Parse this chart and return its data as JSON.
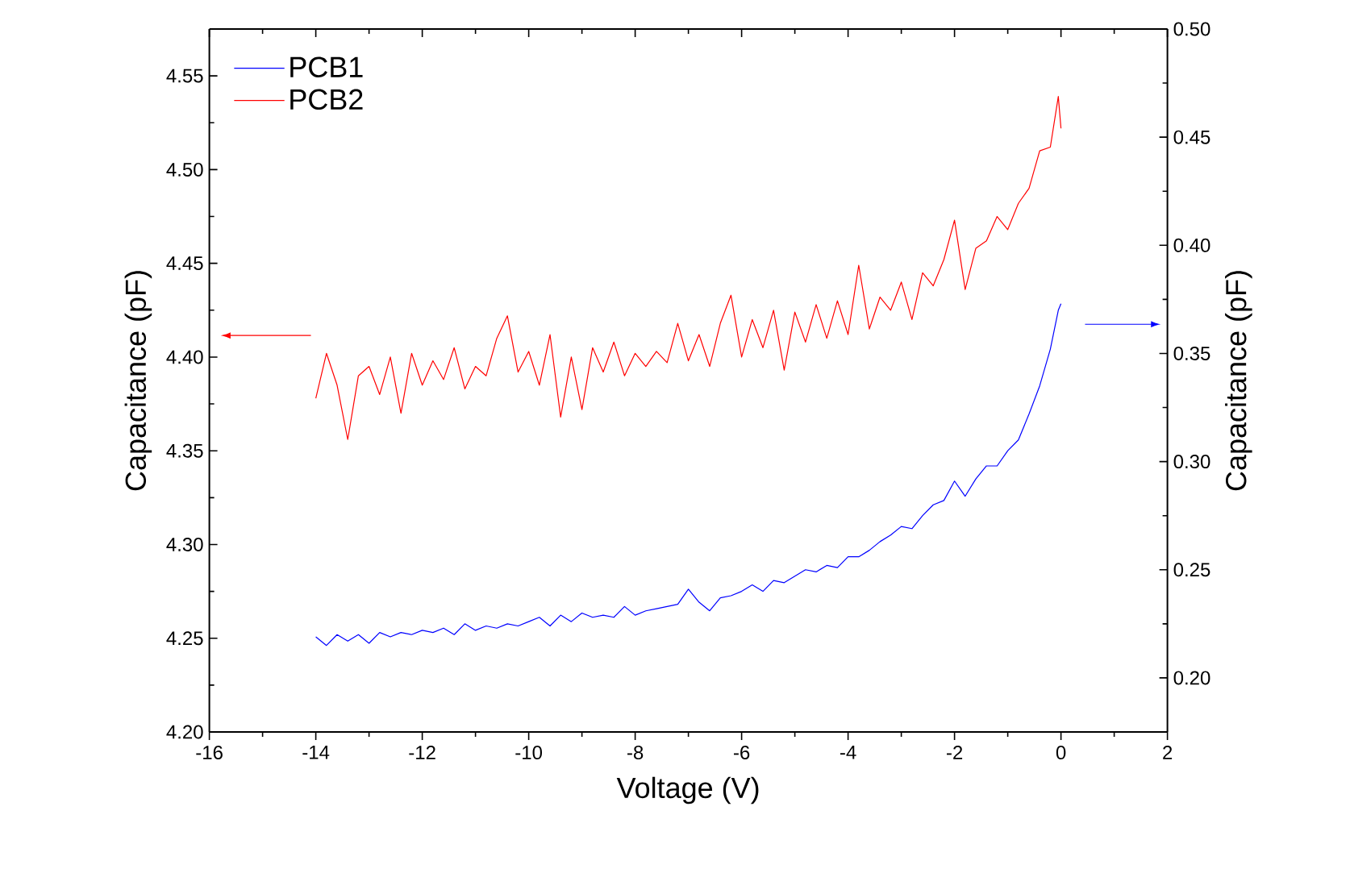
{
  "chart_data": {
    "type": "line",
    "xlabel": "Voltage (V)",
    "ylabel": "Capacitance (pF)",
    "y2label": "Capacitance (pF)",
    "xlim": [
      -16,
      2
    ],
    "xticks": [
      -16,
      -14,
      -12,
      -10,
      -8,
      -6,
      -4,
      -2,
      0,
      2
    ],
    "ylim": [
      4.2,
      4.575
    ],
    "yticks": [
      {
        "value": 4.2,
        "label": "4.20"
      },
      {
        "value": 4.25,
        "label": "4.25"
      },
      {
        "value": 4.3,
        "label": "4.30"
      },
      {
        "value": 4.35,
        "label": "4.35"
      },
      {
        "value": 4.4,
        "label": "4.40"
      },
      {
        "value": 4.45,
        "label": "4.45"
      },
      {
        "value": 4.5,
        "label": "4.50"
      },
      {
        "value": 4.55,
        "label": "4.55"
      }
    ],
    "y2lim": [
      0.175,
      0.5
    ],
    "y2ticks": [
      {
        "value": 0.2,
        "label": "0.20"
      },
      {
        "value": 0.25,
        "label": "0.25"
      },
      {
        "value": 0.3,
        "label": "0.30"
      },
      {
        "value": 0.35,
        "label": "0.35"
      },
      {
        "value": 0.4,
        "label": "0.40"
      },
      {
        "value": 0.45,
        "label": "0.45"
      },
      {
        "value": 0.5,
        "label": "0.50"
      }
    ],
    "legend": "top left",
    "line_style": "solid",
    "x": [
      -14,
      -13.8,
      -13.6,
      -13.4,
      -13.2,
      -13.0,
      -12.8,
      -12.6,
      -12.4,
      -12.2,
      -12.0,
      -11.8,
      -11.6,
      -11.4,
      -11.2,
      -11.0,
      -10.8,
      -10.6,
      -10.4,
      -10.2,
      -10.0,
      -9.8,
      -9.6,
      -9.4,
      -9.2,
      -9.0,
      -8.8,
      -8.6,
      -8.4,
      -8.2,
      -8.0,
      -7.8,
      -7.6,
      -7.4,
      -7.2,
      -7.0,
      -6.8,
      -6.6,
      -6.4,
      -6.2,
      -6.0,
      -5.8,
      -5.6,
      -5.4,
      -5.2,
      -5.0,
      -4.8,
      -4.6,
      -4.4,
      -4.2,
      -4.0,
      -3.8,
      -3.6,
      -3.4,
      -3.2,
      -3.0,
      -2.8,
      -2.6,
      -2.4,
      -2.2,
      -2.0,
      -1.8,
      -1.6,
      -1.4,
      -1.2,
      -1.0,
      -0.8,
      -0.6,
      -0.4,
      -0.2,
      -0.05,
      0
    ],
    "series": [
      {
        "name": "PCB1",
        "color": "#0000ff",
        "axis": "y2",
        "values": [
          0.219,
          0.215,
          0.22,
          0.217,
          0.22,
          0.216,
          0.221,
          0.219,
          0.221,
          0.22,
          0.222,
          0.221,
          0.223,
          0.22,
          0.225,
          0.222,
          0.224,
          0.223,
          0.225,
          0.224,
          0.226,
          0.228,
          0.224,
          0.229,
          0.226,
          0.23,
          0.228,
          0.229,
          0.228,
          0.233,
          0.229,
          0.231,
          0.232,
          0.233,
          0.234,
          0.241,
          0.235,
          0.231,
          0.237,
          0.238,
          0.24,
          0.243,
          0.24,
          0.245,
          0.244,
          0.247,
          0.25,
          0.249,
          0.252,
          0.251,
          0.256,
          0.256,
          0.259,
          0.263,
          0.266,
          0.27,
          0.269,
          0.275,
          0.28,
          0.282,
          0.291,
          0.284,
          0.292,
          0.298,
          0.298,
          0.305,
          0.31,
          0.322,
          0.335,
          0.352,
          0.37,
          0.373
        ]
      },
      {
        "name": "PCB2",
        "color": "#ff0000",
        "axis": "y",
        "values": [
          4.378,
          4.402,
          4.385,
          4.356,
          4.39,
          4.395,
          4.38,
          4.4,
          4.37,
          4.402,
          4.385,
          4.398,
          4.388,
          4.405,
          4.383,
          4.395,
          4.39,
          4.41,
          4.422,
          4.392,
          4.403,
          4.385,
          4.412,
          4.368,
          4.4,
          4.372,
          4.405,
          4.392,
          4.408,
          4.39,
          4.402,
          4.395,
          4.403,
          4.397,
          4.418,
          4.398,
          4.412,
          4.395,
          4.418,
          4.433,
          4.4,
          4.42,
          4.405,
          4.425,
          4.393,
          4.424,
          4.408,
          4.428,
          4.41,
          4.43,
          4.412,
          4.449,
          4.415,
          4.432,
          4.425,
          4.44,
          4.42,
          4.445,
          4.438,
          4.452,
          4.473,
          4.436,
          4.458,
          4.462,
          4.475,
          4.468,
          4.482,
          4.49,
          4.51,
          4.512,
          4.539,
          4.522
        ]
      }
    ]
  }
}
